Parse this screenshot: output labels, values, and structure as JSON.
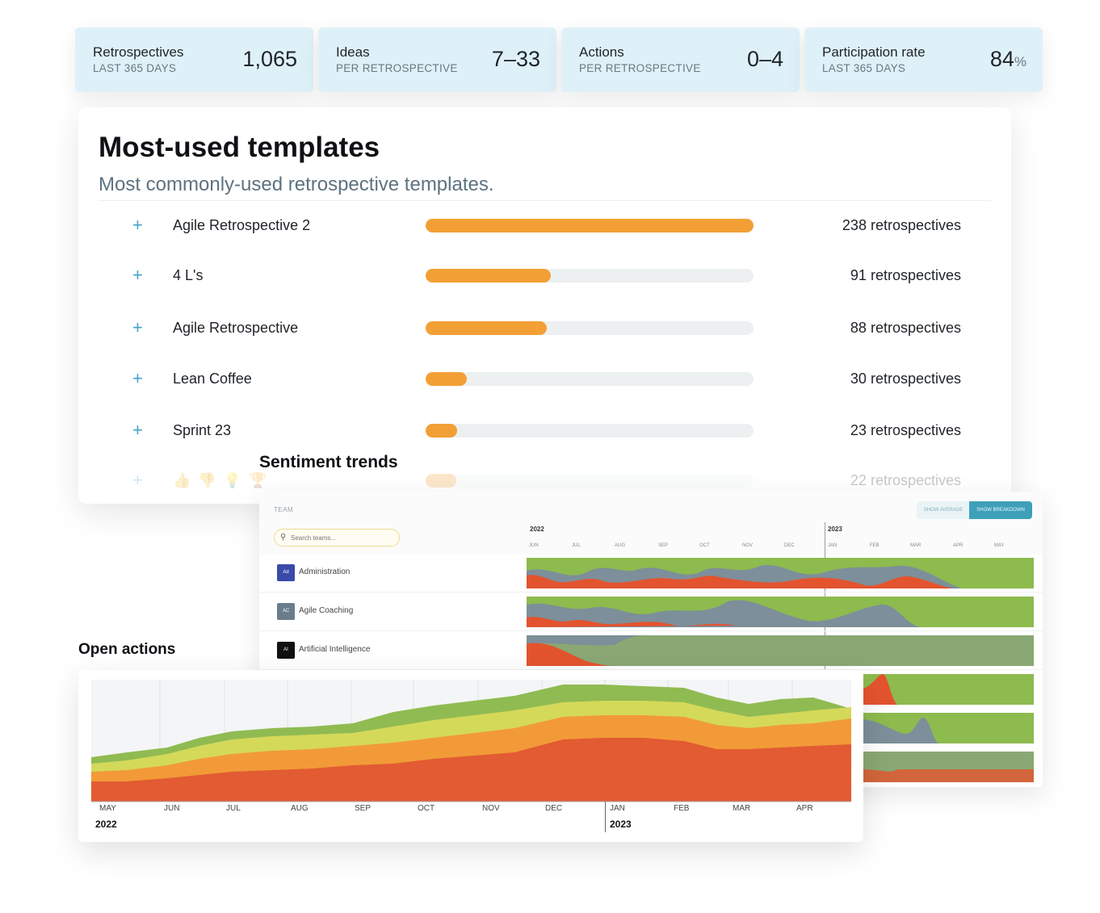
{
  "kpis": [
    {
      "label": "Retrospectives",
      "sublabel": "LAST 365 DAYS",
      "value": "1,065",
      "unit": ""
    },
    {
      "label": "Ideas",
      "sublabel": "PER RETROSPECTIVE",
      "value": "7–33",
      "unit": ""
    },
    {
      "label": "Actions",
      "sublabel": "PER RETROSPECTIVE",
      "value": "0–4",
      "unit": ""
    },
    {
      "label": "Participation rate",
      "sublabel": "LAST 365 DAYS",
      "value": "84",
      "unit": "%"
    }
  ],
  "templates": {
    "title": "Most-used templates",
    "description": "Most commonly-used retrospective templates.",
    "expand_icon": "+",
    "rows": [
      {
        "name": "Agile Retrospective 2",
        "count": 238,
        "count_label": "238 retrospectives"
      },
      {
        "name": "4 L's",
        "count": 91,
        "count_label": "91 retrospectives"
      },
      {
        "name": "Agile Retrospective",
        "count": 88,
        "count_label": "88 retrospectives"
      },
      {
        "name": "Lean Coffee",
        "count": 30,
        "count_label": "30 retrospectives"
      },
      {
        "name": "Sprint 23",
        "count": 23,
        "count_label": "23 retrospectives"
      },
      {
        "name": "👍 👎 💡 🏆",
        "count": 22,
        "count_label": "22 retrospectives"
      }
    ]
  },
  "sentiment": {
    "title": "Sentiment trends",
    "team_label": "TEAM",
    "search_placeholder": "Search teams...",
    "show_average_label": "SHOW AVERAGE",
    "show_breakdown_label": "SHOW BREAKDOWN",
    "years": [
      "2022",
      "2023"
    ],
    "months": [
      "JUN",
      "JUL",
      "AUG",
      "SEP",
      "OCT",
      "NOV",
      "DEC",
      "JAN",
      "FEB",
      "MAR",
      "APR",
      "MAY"
    ],
    "teams": [
      {
        "initials": "Ad",
        "name": "Administration",
        "color": "#3a4aa8"
      },
      {
        "initials": "AC",
        "name": "Agile Coaching",
        "color": "#6a7d8c"
      },
      {
        "initials": "AI",
        "name": "Artificial Intelligence",
        "color": "#111111"
      }
    ],
    "colors": {
      "positive": "#8dbb4e",
      "neutral": "#7d8f9a",
      "negative": "#e3542e",
      "muted_green": "#8aa873"
    }
  },
  "open_actions": {
    "title": "Open actions",
    "months": [
      "MAY",
      "JUN",
      "JUL",
      "AUG",
      "SEP",
      "OCT",
      "NOV",
      "DEC",
      "JAN",
      "FEB",
      "MAR",
      "APR"
    ],
    "years": [
      "2022",
      "2023"
    ],
    "colors": [
      "#e25b32",
      "#f29a38",
      "#d4d95a",
      "#90bb52"
    ]
  }
}
